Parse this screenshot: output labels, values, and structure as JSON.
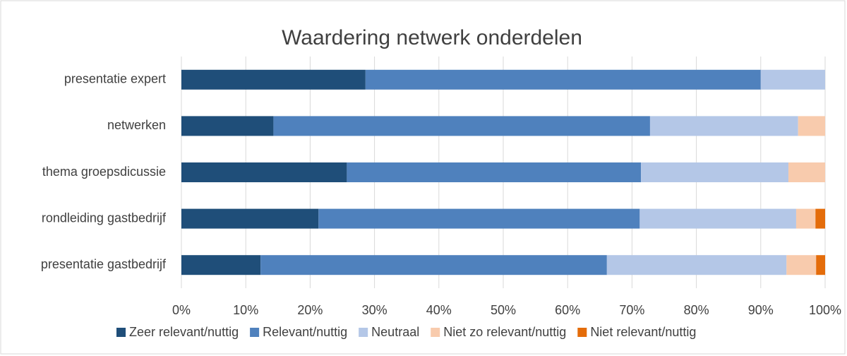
{
  "chart_data": {
    "type": "bar",
    "orientation": "horizontal",
    "stacked": true,
    "title": "Waardering netwerk onderdelen",
    "categories": [
      "presentatie expert",
      "netwerken",
      "thema groepsdicussie",
      "rondleiding gastbedrijf",
      "presentatie gastbedrijf"
    ],
    "series": [
      {
        "name": "Zeer relevant/nuttig",
        "color": "#1f4e79",
        "values": [
          28.6,
          14.3,
          25.7,
          21.3,
          12.3
        ]
      },
      {
        "name": "Relevant/nuttig",
        "color": "#4f81bd",
        "values": [
          61.4,
          58.5,
          45.7,
          49.9,
          53.8
        ]
      },
      {
        "name": "Neutraal",
        "color": "#b4c7e7",
        "values": [
          10,
          23,
          22.9,
          24.3,
          27.9
        ]
      },
      {
        "name": "Niet zo relevant/nuttig",
        "color": "#f8cbad",
        "values": [
          0,
          4.2,
          5.7,
          3,
          4.6
        ]
      },
      {
        "name": "Niet relevant/nuttig",
        "color": "#e46c0a",
        "values": [
          0,
          0,
          0,
          1.5,
          1.4
        ]
      }
    ],
    "xlim": [
      0,
      100
    ],
    "xticks": [
      {
        "value": 0,
        "label": "0%"
      },
      {
        "value": 10,
        "label": "10%"
      },
      {
        "value": 20,
        "label": "20%"
      },
      {
        "value": 30,
        "label": "30%"
      },
      {
        "value": 40,
        "label": "40%"
      },
      {
        "value": 50,
        "label": "50%"
      },
      {
        "value": 60,
        "label": "60%"
      },
      {
        "value": 70,
        "label": "70%"
      },
      {
        "value": 80,
        "label": "80%"
      },
      {
        "value": 90,
        "label": "90%"
      },
      {
        "value": 100,
        "label": "100%"
      }
    ],
    "grid": true,
    "legend": "bottom"
  }
}
